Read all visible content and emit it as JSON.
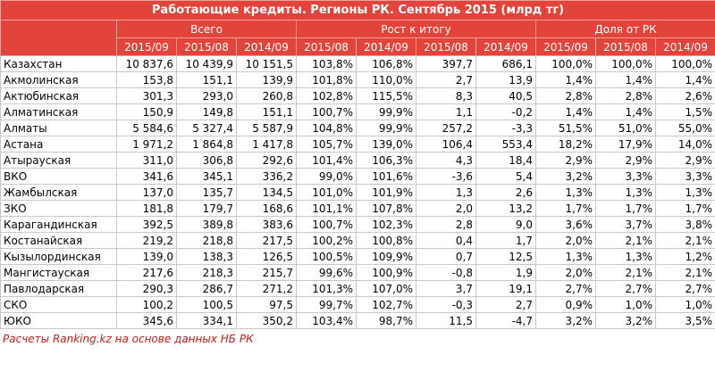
{
  "header": {
    "title": "Работающие кредиты. Регионы РК. Сентябрь 2015 (млрд тг)",
    "groups": [
      "Всего",
      "Рост к итогу",
      "Доля от РК"
    ],
    "periods": [
      "2015/09",
      "2015/08",
      "2014/09",
      "2015/08",
      "2014/09",
      "2015/08",
      "2014/09",
      "2015/09",
      "2015/08",
      "2014/09"
    ]
  },
  "table": {
    "rows": [
      [
        "Казахстан",
        "10 837,6",
        "10 439,9",
        "10 151,5",
        "103,8%",
        "106,8%",
        "397,7",
        "686,1",
        "100,0%",
        "100,0%",
        "100,0%"
      ],
      [
        "Акмолинская",
        "153,8",
        "151,1",
        "139,9",
        "101,8%",
        "110,0%",
        "2,7",
        "13,9",
        "1,4%",
        "1,4%",
        "1,4%"
      ],
      [
        "Актюбинская",
        "301,3",
        "293,0",
        "260,8",
        "102,8%",
        "115,5%",
        "8,3",
        "40,5",
        "2,8%",
        "2,8%",
        "2,6%"
      ],
      [
        "Алматинская",
        "150,9",
        "149,8",
        "151,1",
        "100,7%",
        "99,9%",
        "1,1",
        "-0,2",
        "1,4%",
        "1,4%",
        "1,5%"
      ],
      [
        "Алматы",
        "5 584,6",
        "5 327,4",
        "5 587,9",
        "104,8%",
        "99,9%",
        "257,2",
        "-3,3",
        "51,5%",
        "51,0%",
        "55,0%"
      ],
      [
        "Астана",
        "1 971,2",
        "1 864,8",
        "1 417,8",
        "105,7%",
        "139,0%",
        "106,4",
        "553,4",
        "18,2%",
        "17,9%",
        "14,0%"
      ],
      [
        "Атырауская",
        "311,0",
        "306,8",
        "292,6",
        "101,4%",
        "106,3%",
        "4,3",
        "18,4",
        "2,9%",
        "2,9%",
        "2,9%"
      ],
      [
        "ВКО",
        "341,6",
        "345,1",
        "336,2",
        "99,0%",
        "101,6%",
        "-3,6",
        "5,4",
        "3,2%",
        "3,3%",
        "3,3%"
      ],
      [
        "Жамбылская",
        "137,0",
        "135,7",
        "134,5",
        "101,0%",
        "101,9%",
        "1,3",
        "2,6",
        "1,3%",
        "1,3%",
        "1,3%"
      ],
      [
        "ЗКО",
        "181,8",
        "179,7",
        "168,6",
        "101,1%",
        "107,8%",
        "2,0",
        "13,2",
        "1,7%",
        "1,7%",
        "1,7%"
      ],
      [
        "Карагандинская",
        "392,5",
        "389,8",
        "383,6",
        "100,7%",
        "102,3%",
        "2,8",
        "9,0",
        "3,6%",
        "3,7%",
        "3,8%"
      ],
      [
        "Костанайская",
        "219,2",
        "218,8",
        "217,5",
        "100,2%",
        "100,8%",
        "0,4",
        "1,7",
        "2,0%",
        "2,1%",
        "2,1%"
      ],
      [
        "Кызылординская",
        "139,0",
        "138,3",
        "126,5",
        "100,5%",
        "109,9%",
        "0,7",
        "12,5",
        "1,3%",
        "1,3%",
        "1,2%"
      ],
      [
        "Мангистауская",
        "217,6",
        "218,3",
        "215,7",
        "99,6%",
        "100,9%",
        "-0,8",
        "1,9",
        "2,0%",
        "2,1%",
        "2,1%"
      ],
      [
        "Павлодарская",
        "290,3",
        "286,7",
        "271,2",
        "101,3%",
        "107,0%",
        "3,7",
        "19,1",
        "2,7%",
        "2,7%",
        "2,7%"
      ],
      [
        "СКО",
        "100,2",
        "100,5",
        "97,5",
        "99,7%",
        "102,7%",
        "-0,3",
        "2,7",
        "0,9%",
        "1,0%",
        "1,0%"
      ],
      [
        "ЮКО",
        "345,6",
        "334,1",
        "350,2",
        "103,4%",
        "98,7%",
        "11,5",
        "-4,7",
        "3,2%",
        "3,2%",
        "3,5%"
      ]
    ]
  },
  "footer": {
    "note": "Расчеты Ranking.kz на основе данных НБ РК"
  }
}
